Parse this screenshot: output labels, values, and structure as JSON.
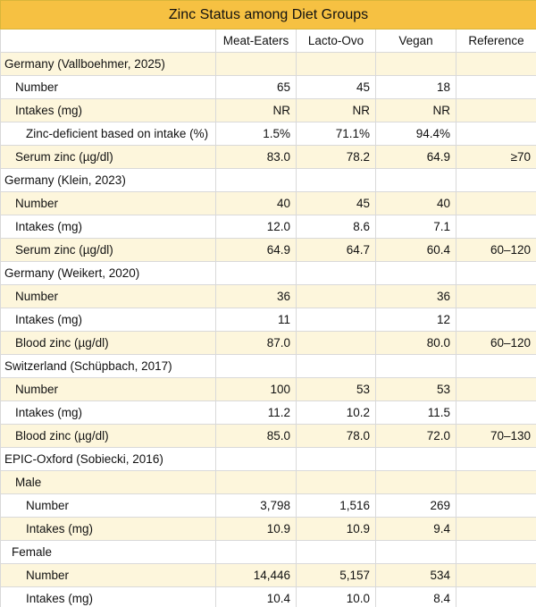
{
  "title": "Zinc Status among Diet Groups",
  "headers": [
    "",
    "Meat-Eaters",
    "Lacto-Ovo",
    "Vegan",
    "Reference"
  ],
  "rows": [
    {
      "label": "Germany (Vallboehmer, 2025)",
      "values": [
        "",
        "",
        "",
        ""
      ],
      "indent": 0,
      "shade": true
    },
    {
      "label": "Number",
      "values": [
        "65",
        "45",
        "18",
        ""
      ],
      "indent": 1,
      "shade": false
    },
    {
      "label": "Intakes (mg)",
      "values": [
        "NR",
        "NR",
        "NR",
        ""
      ],
      "indent": 1,
      "shade": true
    },
    {
      "label": "Zinc-deficient based on intake (%)",
      "values": [
        "1.5%",
        "71.1%",
        "94.4%",
        ""
      ],
      "indent": 2,
      "shade": false
    },
    {
      "label": "Serum zinc (µg/dl)",
      "values": [
        "83.0",
        "78.2",
        "64.9",
        "≥70"
      ],
      "indent": 1,
      "shade": true
    },
    {
      "label": "Germany (Klein, 2023)",
      "values": [
        "",
        "",
        "",
        ""
      ],
      "indent": 0,
      "shade": false
    },
    {
      "label": "Number",
      "values": [
        "40",
        "45",
        "40",
        ""
      ],
      "indent": 1,
      "shade": true
    },
    {
      "label": "Intakes (mg)",
      "values": [
        "12.0",
        "8.6",
        "7.1",
        ""
      ],
      "indent": 1,
      "shade": false
    },
    {
      "label": "Serum zinc (µg/dl)",
      "values": [
        "64.9",
        "64.7",
        "60.4",
        "60–120"
      ],
      "indent": 1,
      "shade": true
    },
    {
      "label": "Germany (Weikert, 2020)",
      "values": [
        "",
        "",
        "",
        ""
      ],
      "indent": 0,
      "shade": false
    },
    {
      "label": "Number",
      "values": [
        "36",
        "",
        "36",
        ""
      ],
      "indent": 1,
      "shade": true
    },
    {
      "label": "Intakes (mg)",
      "values": [
        "11",
        "",
        "12",
        ""
      ],
      "indent": 1,
      "shade": false
    },
    {
      "label": "Blood zinc (µg/dl)",
      "values": [
        "87.0",
        "",
        "80.0",
        "60–120"
      ],
      "indent": 1,
      "shade": true
    },
    {
      "label": "Switzerland (Schüpbach, 2017)",
      "values": [
        "",
        "",
        "",
        ""
      ],
      "indent": 0,
      "shade": false
    },
    {
      "label": "Number",
      "values": [
        "100",
        "53",
        "53",
        ""
      ],
      "indent": 1,
      "shade": true
    },
    {
      "label": "Intakes (mg)",
      "values": [
        "11.2",
        "10.2",
        "11.5",
        ""
      ],
      "indent": 1,
      "shade": false
    },
    {
      "label": "Blood zinc (µg/dl)",
      "values": [
        "85.0",
        "78.0",
        "72.0",
        "70–130"
      ],
      "indent": 1,
      "shade": true
    },
    {
      "label": "EPIC-Oxford (Sobiecki, 2016)",
      "values": [
        "",
        "",
        "",
        ""
      ],
      "indent": 0,
      "shade": false
    },
    {
      "label": "Male",
      "values": [
        "",
        "",
        "",
        ""
      ],
      "indent": 1,
      "shade": true
    },
    {
      "label": "Number",
      "values": [
        "3,798",
        "1,516",
        "269",
        ""
      ],
      "indent": 2,
      "shade": false
    },
    {
      "label": "Intakes (mg)",
      "values": [
        "10.9",
        "10.9",
        "9.4",
        ""
      ],
      "indent": 2,
      "shade": true
    },
    {
      "label": "Female",
      "values": [
        "",
        "",
        "",
        ""
      ],
      "indent": 3,
      "shade": false
    },
    {
      "label": "Number",
      "values": [
        "14,446",
        "5,157",
        "534",
        ""
      ],
      "indent": 2,
      "shade": true
    },
    {
      "label": "Intakes (mg)",
      "values": [
        "10.4",
        "10.0",
        "8.4",
        ""
      ],
      "indent": 2,
      "shade": false
    }
  ]
}
